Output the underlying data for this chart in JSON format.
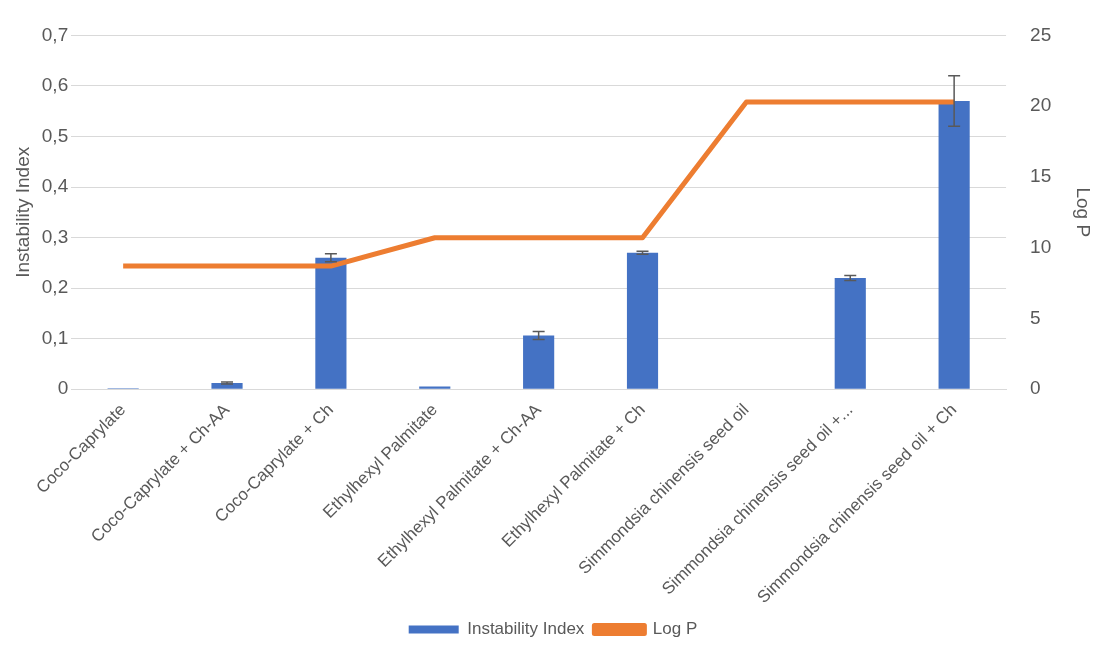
{
  "chart_data": {
    "type": "bar",
    "ylabel": "Instability Index",
    "y2label": "Log P",
    "categories": [
      "Coco-Caprylate",
      "Coco-Caprylate + Ch-AA",
      "Coco-Caprylate + Ch",
      "Ethylhexyl Palmitate",
      "Ethylhexyl Palmitate + Ch-AA",
      "Ethylhexyl Palmitate + Ch",
      "Simmondsia chinensis seed oil",
      "Simmondsia chinensis seed oil +...",
      "Simmondsia chinensis seed oil + Ch"
    ],
    "series": [
      {
        "name": "Instability Index",
        "color": "#4472c4",
        "values": [
          0.002,
          0.012,
          0.26,
          0.005,
          0.106,
          0.27,
          0.001,
          0.22,
          0.57
        ],
        "errors": [
          null,
          0.002,
          0.008,
          null,
          0.008,
          0.003,
          null,
          0.005,
          0.05
        ]
      },
      {
        "name": "Log P",
        "type": "line",
        "axis": "y2",
        "color": "#ed7d31",
        "values": [
          8.7,
          8.7,
          8.7,
          10.7,
          10.7,
          10.7,
          20.3,
          20.3,
          20.3
        ]
      }
    ],
    "ylim": [
      0,
      0.7
    ],
    "yticks": [
      {
        "value": 0,
        "label": "0"
      },
      {
        "value": 0.1,
        "label": "0,1"
      },
      {
        "value": 0.2,
        "label": "0,2"
      },
      {
        "value": 0.3,
        "label": "0,3"
      },
      {
        "value": 0.4,
        "label": "0,4"
      },
      {
        "value": 0.5,
        "label": "0,5"
      },
      {
        "value": 0.6,
        "label": "0,6"
      },
      {
        "value": 0.7,
        "label": "0,7"
      }
    ],
    "y2lim": [
      0,
      25
    ],
    "y2ticks": [
      0,
      5,
      10,
      15,
      20,
      25
    ],
    "grid": "y",
    "legend": "bottom",
    "marker": "none"
  }
}
